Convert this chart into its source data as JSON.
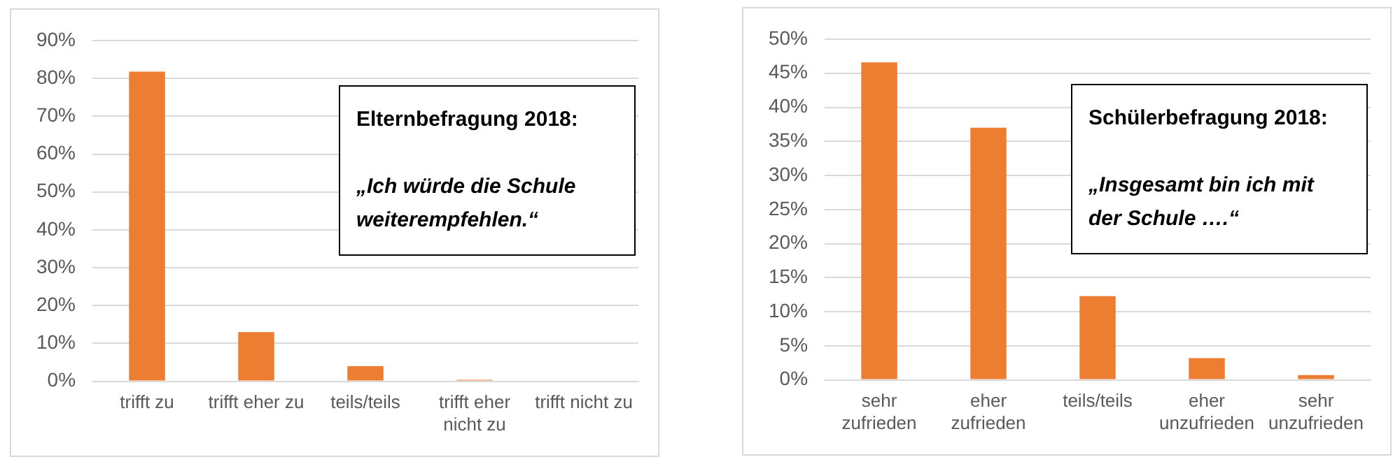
{
  "chart_data": [
    {
      "type": "bar",
      "categories": [
        "trifft zu",
        "trifft eher zu",
        "teils/teils",
        "trifft eher nicht zu",
        "trifft nicht zu"
      ],
      "values": [
        81.8,
        13.0,
        4.0,
        0.4,
        0
      ],
      "color": "#ed7d31",
      "ylim": [
        0,
        90
      ],
      "yticks": [
        {
          "value": 0,
          "label": "0%"
        },
        {
          "value": 10,
          "label": "10%"
        },
        {
          "value": 20,
          "label": "20%"
        },
        {
          "value": 30,
          "label": "30%"
        },
        {
          "value": 40,
          "label": "40%"
        },
        {
          "value": 50,
          "label": "50%"
        },
        {
          "value": 60,
          "label": "60%"
        },
        {
          "value": 70,
          "label": "70%"
        },
        {
          "value": 80,
          "label": "80%"
        },
        {
          "value": 90,
          "label": "90%"
        }
      ],
      "grid": "y",
      "legend": false,
      "annotations": [
        "Elternbefragung 2018:",
        "„Ich würde die Schule weiterempfehlen.“"
      ]
    },
    {
      "type": "bar",
      "categories": [
        "sehr zufrieden",
        "eher zufrieden",
        "teils/teils",
        "eher unzufrieden",
        "sehr unzufrieden"
      ],
      "values": [
        46.6,
        37.0,
        12.3,
        3.2,
        0.7
      ],
      "color": "#ed7d31",
      "ylim": [
        0,
        50
      ],
      "yticks": [
        {
          "value": 0,
          "label": "0%"
        },
        {
          "value": 5,
          "label": "5%"
        },
        {
          "value": 10,
          "label": "10%"
        },
        {
          "value": 15,
          "label": "15%"
        },
        {
          "value": 20,
          "label": "20%"
        },
        {
          "value": 25,
          "label": "25%"
        },
        {
          "value": 30,
          "label": "30%"
        },
        {
          "value": 35,
          "label": "35%"
        },
        {
          "value": 40,
          "label": "40%"
        },
        {
          "value": 45,
          "label": "45%"
        },
        {
          "value": 50,
          "label": "50%"
        }
      ],
      "grid": "y",
      "legend": false,
      "annotations": [
        "Schülerbefragung 2018:",
        "„Insgesamt bin ich mit der Schule ….“"
      ]
    }
  ]
}
